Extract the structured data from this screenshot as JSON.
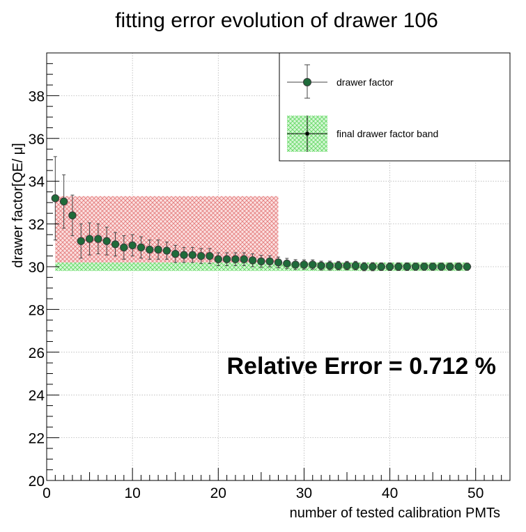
{
  "chart_data": {
    "type": "scatter",
    "title": "fitting error evolution of drawer 106",
    "xlabel": "number of tested calibration PMTs",
    "ylabel": "drawer factor[QE/ μ]",
    "xlim": [
      0,
      54
    ],
    "ylim": [
      20,
      40
    ],
    "x_ticks": [
      0,
      10,
      20,
      30,
      40,
      50
    ],
    "y_ticks": [
      20,
      22,
      24,
      26,
      28,
      30,
      32,
      34,
      36,
      38
    ],
    "grid": true,
    "legend_position": "top-right",
    "legend": [
      {
        "label": "drawer factor",
        "marker": "circle-errorbar"
      },
      {
        "label": "final drawer factor band",
        "marker": "band"
      }
    ],
    "annotation": "Relative Error = 0.712 %",
    "colors": {
      "marker_fill": "#1f6b3a",
      "marker_edge": "#3a3a3a",
      "error_bar": "#444444",
      "green_band": "#7fe07f",
      "red_band": "#ee8888",
      "grid": "#b4b4b4"
    },
    "green_band": {
      "y_min": 29.8,
      "y_max": 30.2,
      "x_min": 1,
      "x_max": 49
    },
    "red_band": {
      "y_min": 30.2,
      "y_max": 33.3,
      "x_min": 1,
      "x_max": 27
    },
    "series": [
      {
        "name": "drawer factor",
        "x": [
          1,
          2,
          3,
          4,
          5,
          6,
          7,
          8,
          9,
          10,
          11,
          12,
          13,
          14,
          15,
          16,
          17,
          18,
          19,
          20,
          21,
          22,
          23,
          24,
          25,
          26,
          27,
          28,
          29,
          30,
          31,
          32,
          33,
          34,
          35,
          36,
          37,
          38,
          39,
          40,
          41,
          42,
          43,
          44,
          45,
          46,
          47,
          48,
          49
        ],
        "y": [
          33.2,
          33.05,
          32.4,
          31.2,
          31.3,
          31.3,
          31.2,
          31.05,
          30.9,
          31.0,
          30.9,
          30.8,
          30.8,
          30.75,
          30.6,
          30.55,
          30.55,
          30.5,
          30.5,
          30.35,
          30.35,
          30.35,
          30.35,
          30.3,
          30.25,
          30.25,
          30.2,
          30.15,
          30.1,
          30.1,
          30.1,
          30.05,
          30.05,
          30.05,
          30.05,
          30.05,
          30.0,
          30.0,
          30.0,
          30.0,
          30.0,
          30.0,
          30.0,
          30.0,
          30.0,
          30.0,
          30.0,
          30.0,
          30.0
        ],
        "err": [
          1.95,
          1.25,
          0.95,
          0.8,
          0.75,
          0.7,
          0.65,
          0.55,
          0.55,
          0.5,
          0.5,
          0.45,
          0.45,
          0.4,
          0.4,
          0.35,
          0.35,
          0.35,
          0.35,
          0.3,
          0.3,
          0.3,
          0.3,
          0.3,
          0.28,
          0.26,
          0.25,
          0.24,
          0.23,
          0.22,
          0.22,
          0.21,
          0.21,
          0.2,
          0.2,
          0.2,
          0.19,
          0.19,
          0.18,
          0.18,
          0.18,
          0.18,
          0.17,
          0.17,
          0.17,
          0.17,
          0.17,
          0.17,
          0.17
        ]
      }
    ]
  }
}
